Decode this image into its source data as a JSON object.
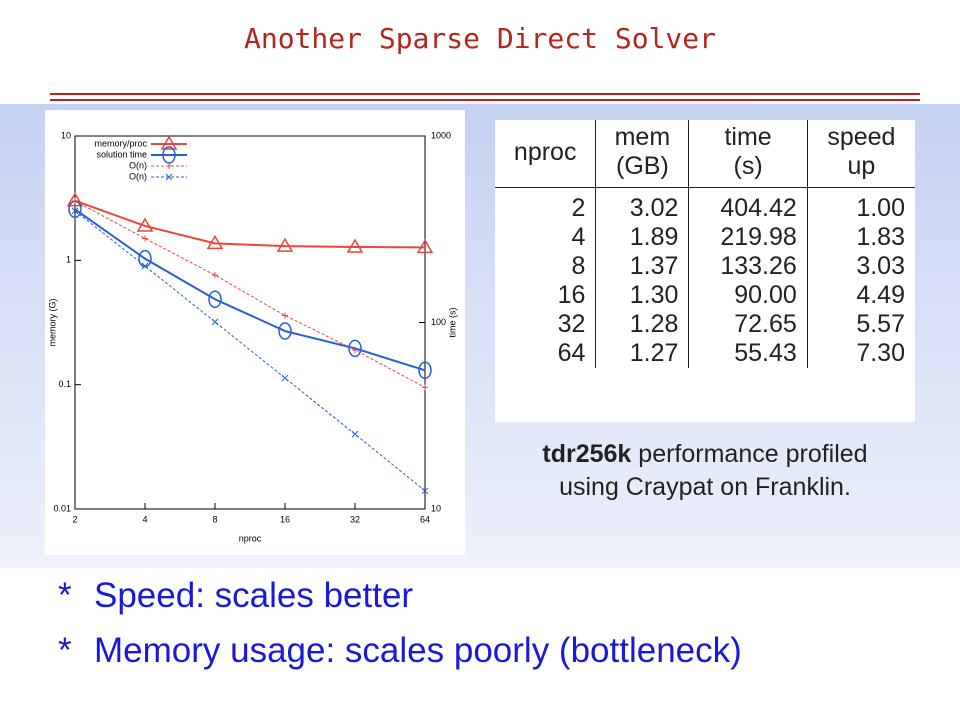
{
  "title": "Another Sparse Direct Solver",
  "chart_data": {
    "type": "line",
    "x_label": "nproc",
    "y_label": "memory (G)",
    "y2_label": "time (s)",
    "categories": [
      "2",
      "4",
      "8",
      "16",
      "32",
      "64"
    ],
    "ylog": true,
    "ylim": [
      0.01,
      10
    ],
    "yticks": [
      0.01,
      0.1,
      1,
      10
    ],
    "y2log": true,
    "y2lim": [
      10,
      1000
    ],
    "y2ticks": [
      10,
      100,
      1000
    ],
    "legend": "upper left",
    "series": [
      {
        "name": "memory/proc",
        "color": "#e8473f",
        "marker": "triangle",
        "dashed": false,
        "values": [
          3.02,
          1.89,
          1.37,
          1.3,
          1.28,
          1.27
        ]
      },
      {
        "name": "solution time",
        "color": "#2a5fd0",
        "marker": "circle",
        "dashed": false,
        "axis": "y2",
        "values": [
          404.42,
          219.98,
          133.26,
          90.0,
          72.65,
          55.43
        ]
      },
      {
        "name": "O(n)",
        "color": "#e8473f",
        "marker": "plus",
        "dashed": true,
        "values": [
          3.0,
          1.5,
          0.76,
          0.36,
          0.19,
          0.095
        ]
      },
      {
        "name": "O(n)",
        "color": "#2a5fd0",
        "marker": "cross",
        "dashed": true,
        "values": [
          2.5,
          0.9,
          0.32,
          0.113,
          0.04,
          0.014
        ]
      }
    ]
  },
  "table": {
    "header": [
      [
        "nproc"
      ],
      [
        "mem",
        "(GB)"
      ],
      [
        "time",
        "(s)"
      ],
      [
        "speed",
        "up"
      ]
    ],
    "rows": [
      [
        "2",
        "3.02",
        "404.42",
        "1.00"
      ],
      [
        "4",
        "1.89",
        "219.98",
        "1.83"
      ],
      [
        "8",
        "1.37",
        "133.26",
        "3.03"
      ],
      [
        "16",
        "1.30",
        "90.00",
        "4.49"
      ],
      [
        "32",
        "1.28",
        "72.65",
        "5.57"
      ],
      [
        "64",
        "1.27",
        "55.43",
        "7.30"
      ]
    ]
  },
  "caption": {
    "bold": "tdr256k",
    "line1": "performance profiled",
    "line2": "using Craypat on Franklin."
  },
  "bullets": [
    {
      "marker": "*",
      "text": "Speed: scales better"
    },
    {
      "marker": "*",
      "text": "Memory usage: scales poorly (bottleneck)"
    }
  ]
}
